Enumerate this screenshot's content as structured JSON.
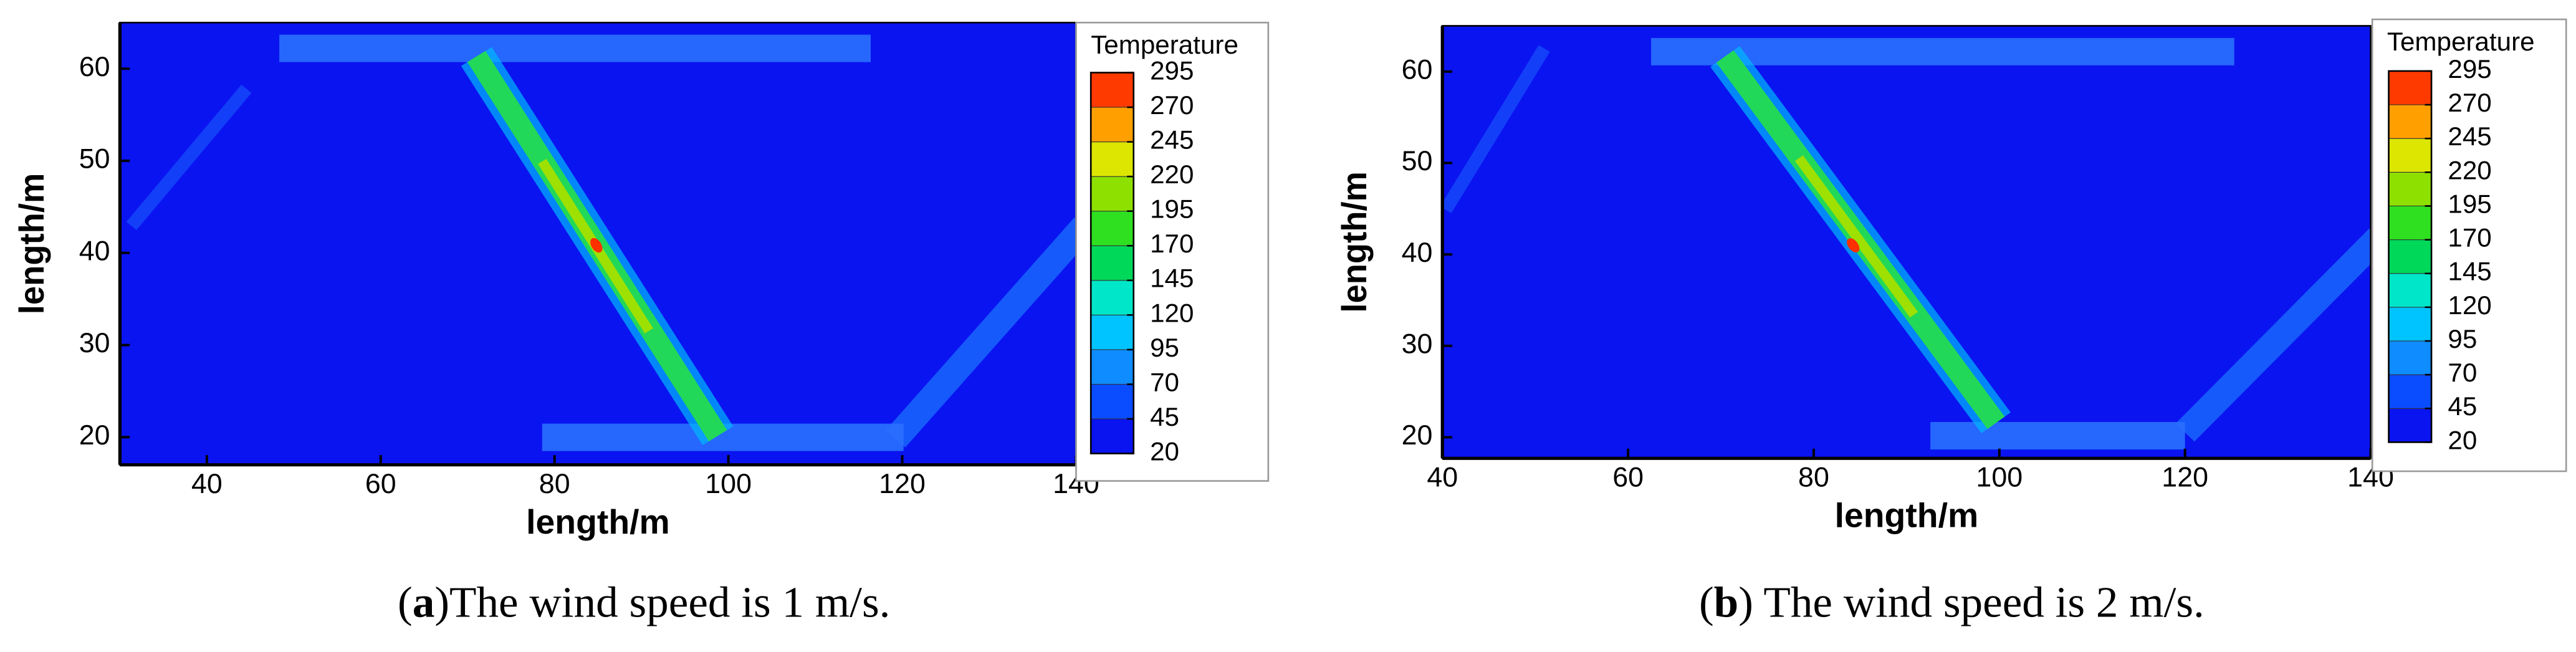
{
  "chart_data": [
    {
      "type": "contour",
      "x_label": "length/m",
      "y_label": "length/m",
      "xlim": [
        30,
        140
      ],
      "xticks": [
        40,
        60,
        80,
        100,
        120,
        140
      ],
      "ylim": [
        17,
        65
      ],
      "yticks": [
        20,
        30,
        40,
        50,
        60
      ],
      "colorbar": {
        "title": "Temperature",
        "levels": [
          20,
          45,
          70,
          95,
          120,
          145,
          170,
          195,
          220,
          245,
          270,
          295
        ],
        "colors": [
          "#0a14f0",
          "#0a4cff",
          "#0f8cff",
          "#00c4ff",
          "#00e6c8",
          "#00d85a",
          "#2ee020",
          "#8ee000",
          "#dce600",
          "#ffa000",
          "#ff3a00"
        ]
      },
      "caption": {
        "open": "(",
        "label": "a",
        "text": ")The wind speed is 1 m/s."
      }
    },
    {
      "type": "contour",
      "x_label": "length/m",
      "y_label": "length/m",
      "xlim": [
        40,
        140
      ],
      "xticks": [
        40,
        60,
        80,
        100,
        120,
        140
      ],
      "ylim": [
        17.7,
        65
      ],
      "yticks": [
        20,
        30,
        40,
        50,
        60
      ],
      "colorbar": {
        "title": "Temperature",
        "levels": [
          20,
          45,
          70,
          95,
          120,
          145,
          170,
          195,
          220,
          245,
          270,
          295
        ],
        "colors": [
          "#0a14f0",
          "#0a4cff",
          "#0f8cff",
          "#00c4ff",
          "#00e6c8",
          "#00d85a",
          "#2ee020",
          "#8ee000",
          "#dce600",
          "#ffa000",
          "#ff3a00"
        ]
      },
      "caption": {
        "open": "(",
        "label": "b",
        "text": ") The wind speed is 2 m/s."
      }
    }
  ]
}
